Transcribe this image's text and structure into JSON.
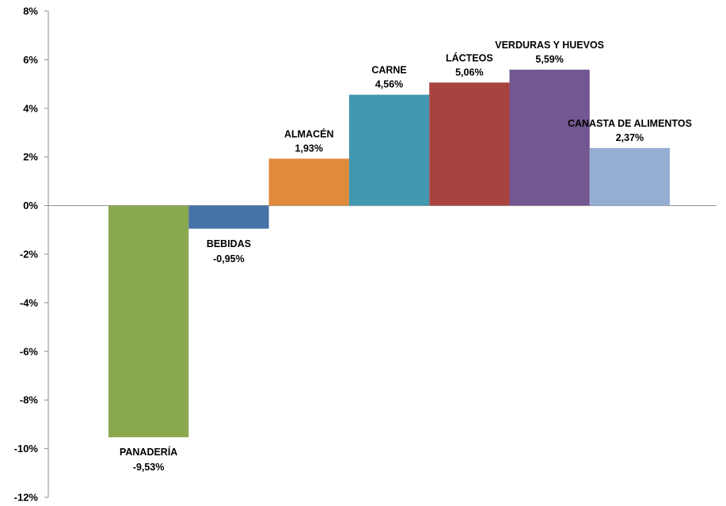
{
  "chart_data": {
    "type": "bar",
    "title": "",
    "xlabel": "",
    "ylabel": "",
    "ylim": [
      -12,
      8
    ],
    "y_ticks": [
      8,
      6,
      4,
      2,
      0,
      -2,
      -4,
      -6,
      -8,
      -10,
      -12
    ],
    "y_tick_labels": [
      "8%",
      "6%",
      "4%",
      "2%",
      "0%",
      "-2%",
      "-4%",
      "-6%",
      "-8%",
      "-10%",
      "-12%"
    ],
    "grid": false,
    "legend": "none",
    "bar_gap": 0,
    "categories": [
      "PANADERÍA",
      "BEBIDAS",
      "ALMACÉN",
      "CARNE",
      "LÁCTEOS",
      "VERDURAS Y HUEVOS",
      "CANASTA DE ALIMENTOS"
    ],
    "values": [
      -9.53,
      -0.95,
      1.93,
      4.56,
      5.06,
      5.59,
      2.37
    ],
    "value_labels": [
      "-9,53%",
      "-0,95%",
      "1,93%",
      "4,56%",
      "5,06%",
      "5,59%",
      "2,37%"
    ],
    "colors": [
      "#8aa84e",
      "#4572a7",
      "#e08a3c",
      "#4298af",
      "#a8443f",
      "#735791",
      "#96aed2"
    ]
  }
}
